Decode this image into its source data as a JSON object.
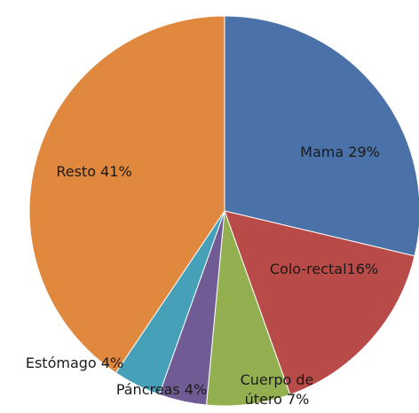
{
  "chart_data": {
    "type": "pie",
    "values": [
      29,
      16,
      7,
      4,
      4,
      41
    ],
    "value_labels": [
      "Mama 29%",
      "Colo-rectal16%",
      "Cuerpo de útero 7%",
      "Páncreas 4%",
      "Estómago 4%",
      "Resto 41%"
    ],
    "colors": [
      "#4a72a8",
      "#b84a47",
      "#93b050",
      "#705b94",
      "#45a0b8",
      "#e0883e"
    ]
  }
}
